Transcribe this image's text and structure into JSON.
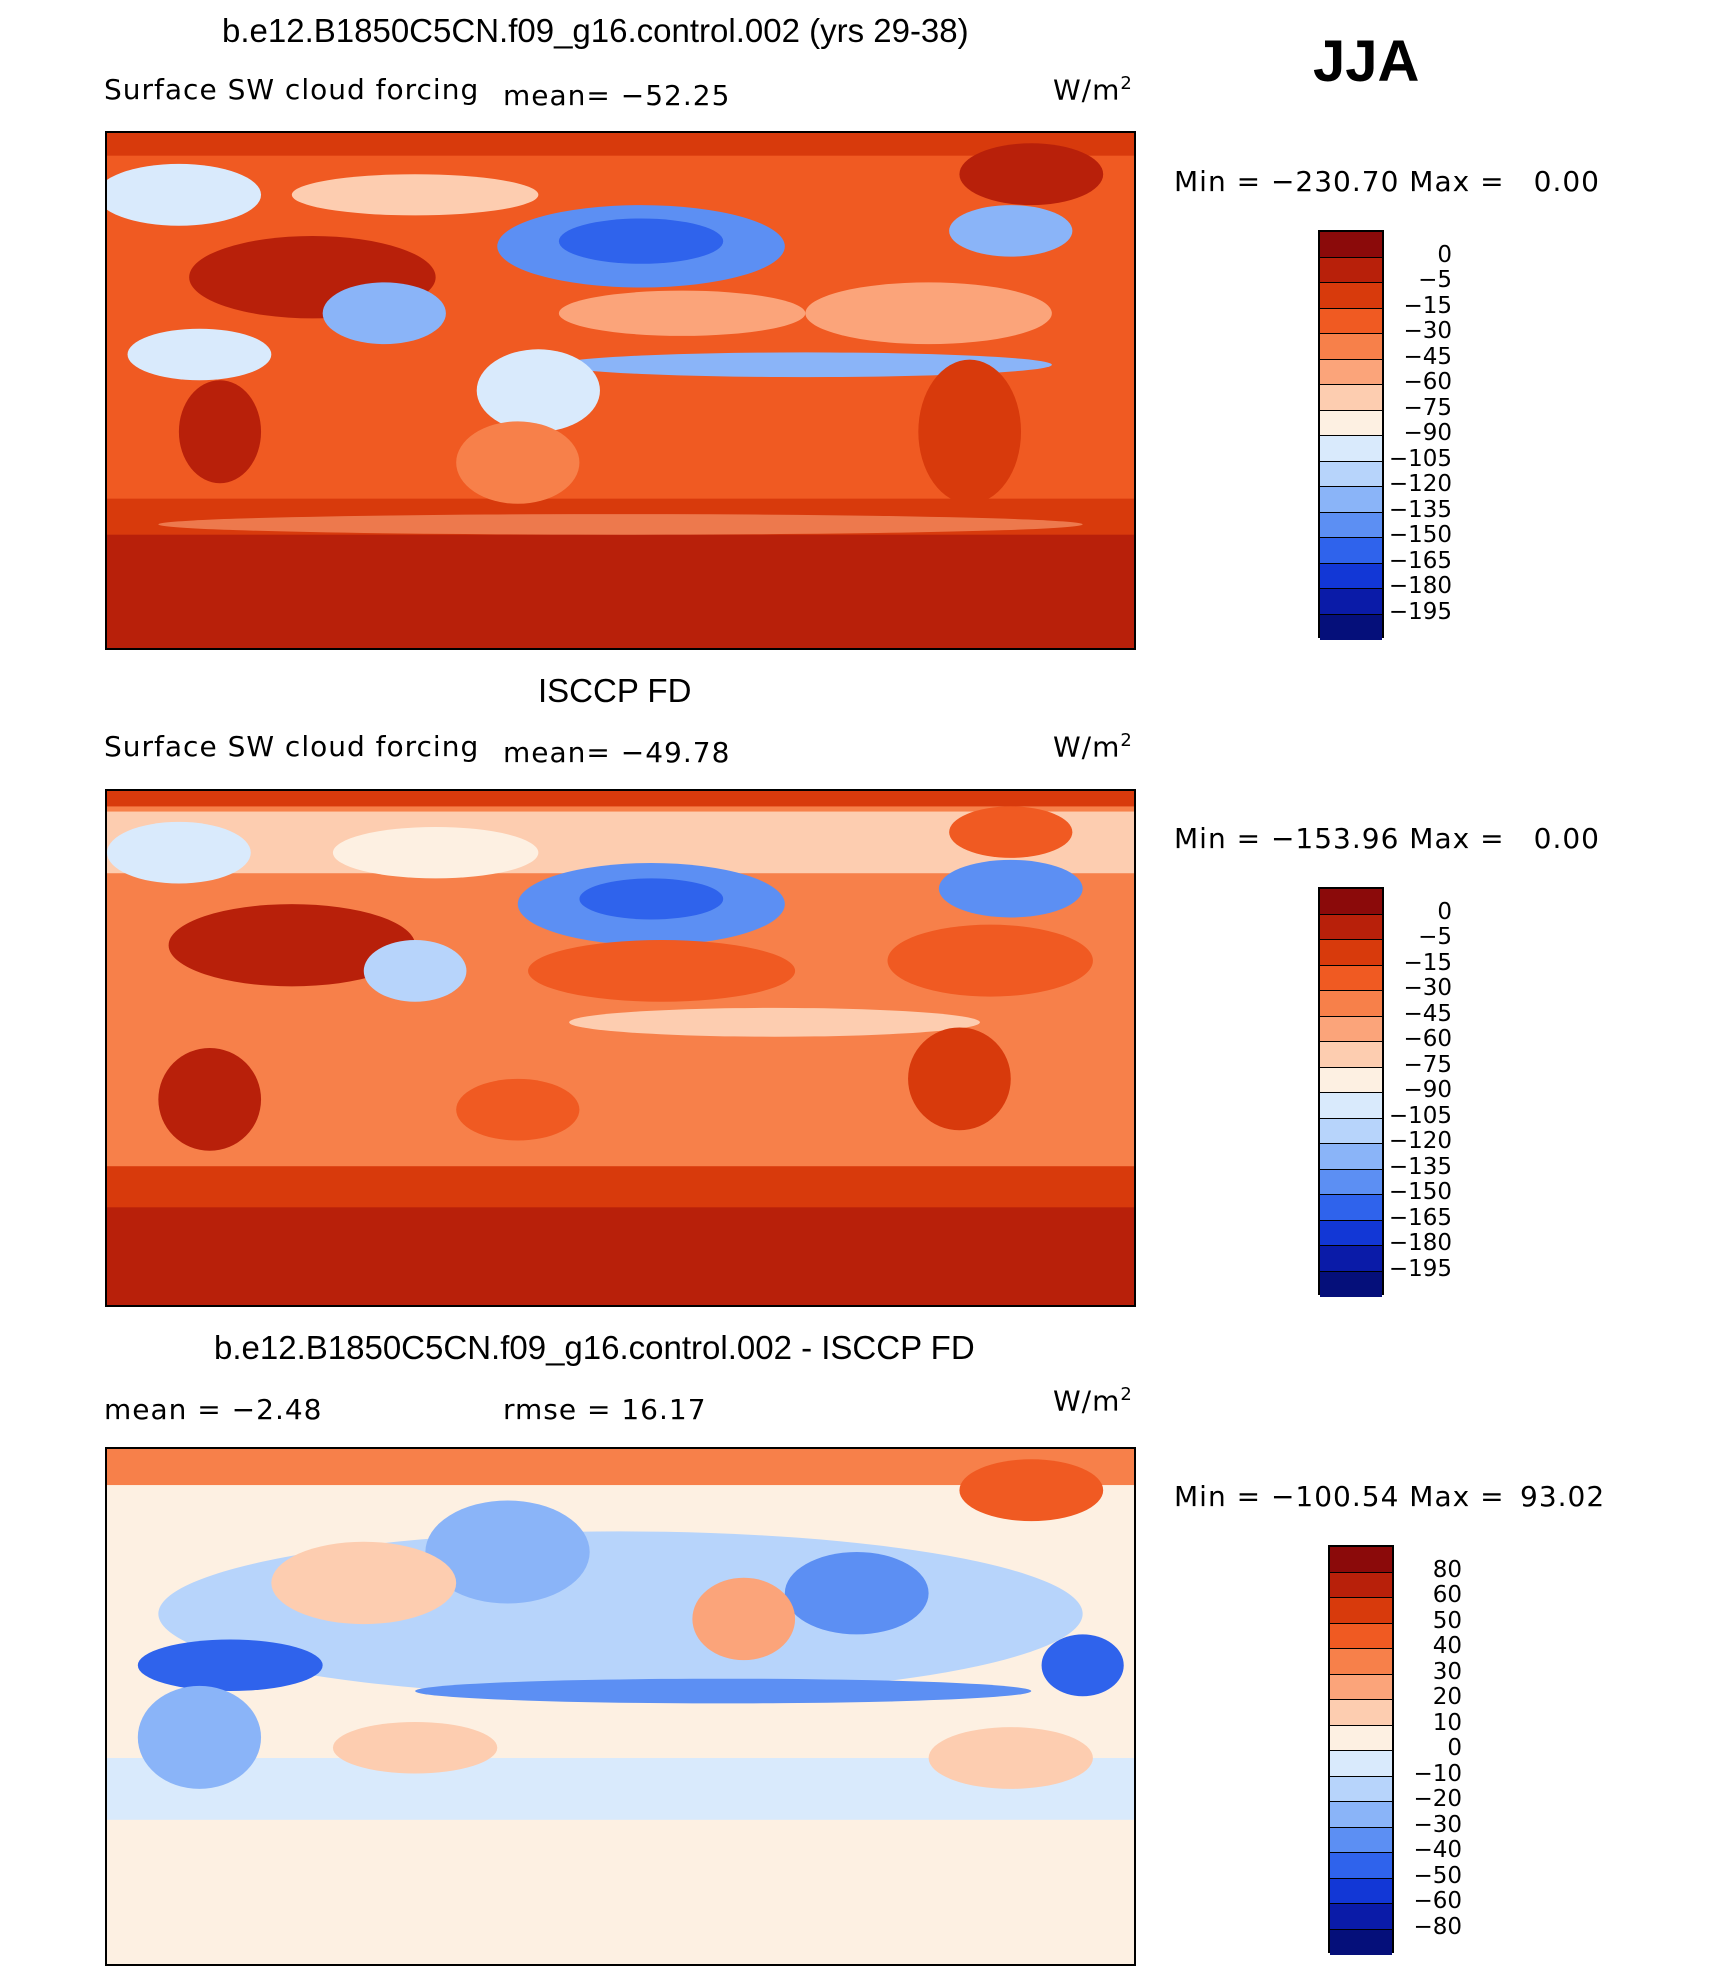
{
  "season": "JJA",
  "panels": [
    {
      "title": "b.e12.B1850C5CN.f09_g16.control.002 (yrs 29-38)",
      "variable": "Surface SW cloud forcing",
      "stat1": "mean= −52.25",
      "stat2": "",
      "units": "W/m",
      "units_sup": "2",
      "minmax_label_min": "Min  =",
      "min": "−230.70",
      "minmax_label_max": "Max  =",
      "max": "0.00",
      "levels": [
        "0",
        "−5",
        "−15",
        "−30",
        "−45",
        "−60",
        "−75",
        "−90",
        "−105",
        "−120",
        "−135",
        "−150",
        "−165",
        "−180",
        "−195"
      ],
      "colors": [
        "#8b0a0a",
        "#b8200a",
        "#d83a0c",
        "#f05a22",
        "#f7804a",
        "#fba47a",
        "#fdcdb0",
        "#fdf0e2",
        "#d9eafc",
        "#b7d4fb",
        "#8ab4f8",
        "#5c8ff3",
        "#2f63ec",
        "#1237d6",
        "#0a1ba8",
        "#050f7a"
      ]
    },
    {
      "title": "ISCCP FD",
      "variable": "Surface SW cloud forcing",
      "stat1": "mean= −49.78",
      "stat2": "",
      "units": "W/m",
      "units_sup": "2",
      "minmax_label_min": "Min  =",
      "min": "−153.96",
      "minmax_label_max": "Max  =",
      "max": "0.00",
      "levels": [
        "0",
        "−5",
        "−15",
        "−30",
        "−45",
        "−60",
        "−75",
        "−90",
        "−105",
        "−120",
        "−135",
        "−150",
        "−165",
        "−180",
        "−195"
      ],
      "colors": [
        "#8b0a0a",
        "#b8200a",
        "#d83a0c",
        "#f05a22",
        "#f7804a",
        "#fba47a",
        "#fdcdb0",
        "#fdf0e2",
        "#d9eafc",
        "#b7d4fb",
        "#8ab4f8",
        "#5c8ff3",
        "#2f63ec",
        "#1237d6",
        "#0a1ba8",
        "#050f7a"
      ]
    },
    {
      "title": "b.e12.B1850C5CN.f09_g16.control.002 - ISCCP FD",
      "variable": "",
      "stat1": "mean =     −2.48",
      "stat2": "rmse =     16.17",
      "units": "W/m",
      "units_sup": "2",
      "minmax_label_min": "Min  =",
      "min": "−100.54",
      "minmax_label_max": "Max  =",
      "max": "93.02",
      "levels": [
        "80",
        "60",
        "50",
        "40",
        "30",
        "20",
        "10",
        "0",
        "−10",
        "−20",
        "−30",
        "−40",
        "−50",
        "−60",
        "−80"
      ],
      "colors": [
        "#8b0a0a",
        "#b8200a",
        "#d83a0c",
        "#f05a22",
        "#f7804a",
        "#fba47a",
        "#fdcdb0",
        "#fdf0e2",
        "#d9eafc",
        "#b7d4fb",
        "#8ab4f8",
        "#5c8ff3",
        "#2f63ec",
        "#1237d6",
        "#0a1ba8",
        "#050f7a"
      ]
    }
  ]
}
